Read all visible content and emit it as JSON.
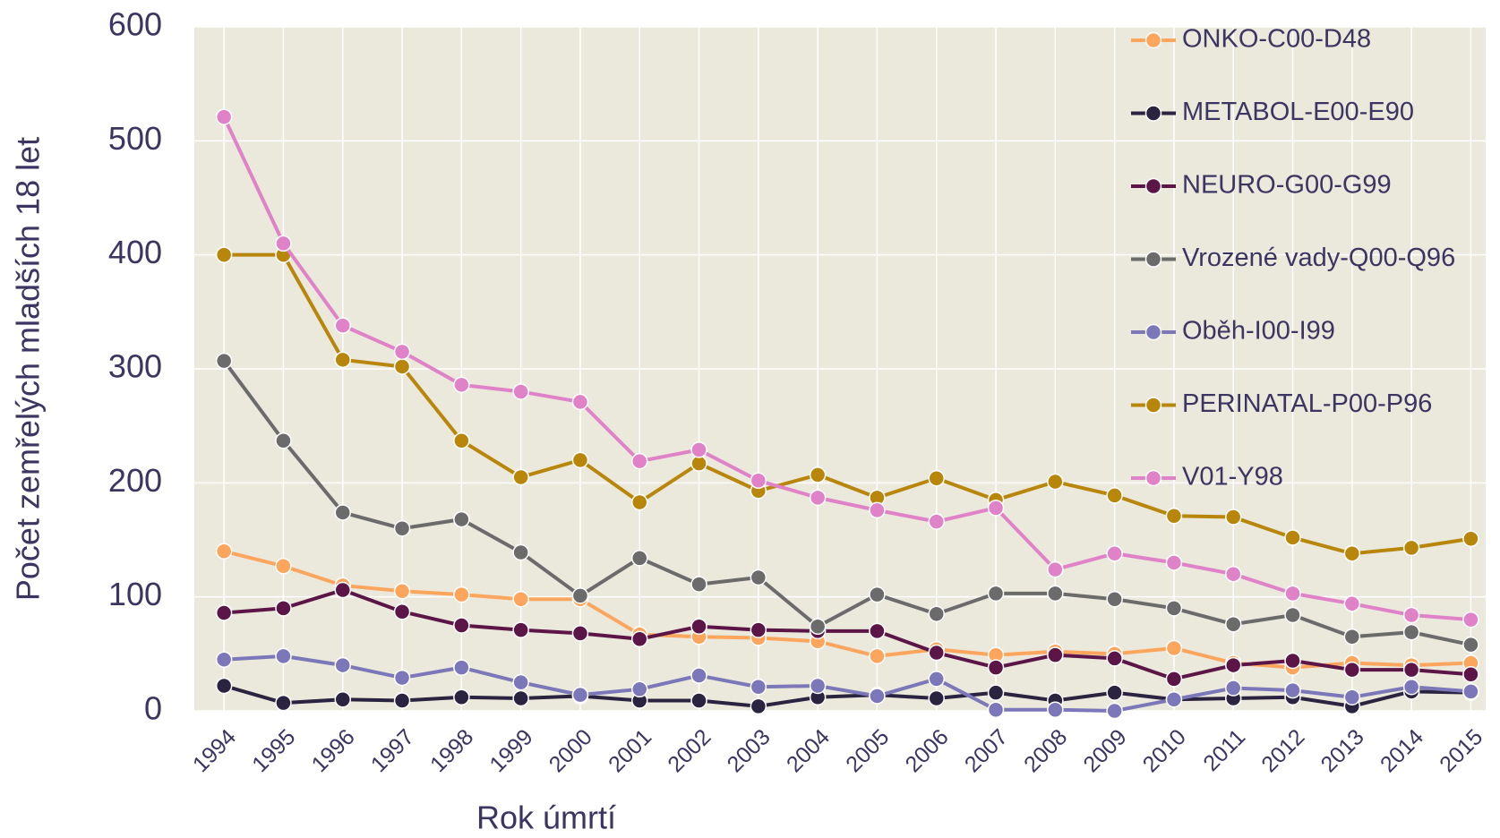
{
  "chart_data": {
    "type": "line",
    "xlabel": "Rok úmrtí",
    "ylabel": "Počet zemřelých mladších 18 let",
    "x": [
      1994,
      1995,
      1996,
      1997,
      1998,
      1999,
      2000,
      2001,
      2002,
      2003,
      2004,
      2005,
      2006,
      2007,
      2008,
      2009,
      2010,
      2011,
      2012,
      2013,
      2014,
      2015
    ],
    "series": [
      {
        "name": "ONKO-C00-D48",
        "color": "#fca55d",
        "values": [
          140,
          127,
          110,
          105,
          102,
          98,
          98,
          67,
          65,
          64,
          61,
          48,
          54,
          49,
          52,
          50,
          55,
          42,
          38,
          42,
          40,
          42
        ]
      },
      {
        "name": "METABOL-E00-E90",
        "color": "#2a2440",
        "values": [
          22,
          7,
          10,
          9,
          12,
          11,
          13,
          9,
          9,
          4,
          12,
          14,
          11,
          16,
          9,
          16,
          10,
          11,
          12,
          4,
          17,
          16
        ]
      },
      {
        "name": "NEURO-G00-G99",
        "color": "#5c1547",
        "values": [
          86,
          90,
          106,
          87,
          75,
          71,
          68,
          63,
          74,
          71,
          70,
          70,
          51,
          38,
          49,
          46,
          28,
          40,
          44,
          36,
          36,
          32
        ]
      },
      {
        "name": "Vrozené vady-Q00-Q96",
        "color": "#6b6b6b",
        "values": [
          307,
          237,
          174,
          160,
          168,
          139,
          101,
          134,
          111,
          117,
          74,
          102,
          85,
          103,
          103,
          98,
          90,
          76,
          84,
          65,
          69,
          58
        ]
      },
      {
        "name": "Oběh-I00-I99",
        "color": "#7b77b8",
        "values": [
          45,
          48,
          40,
          29,
          38,
          25,
          14,
          19,
          31,
          21,
          22,
          13,
          28,
          1,
          1,
          0,
          10,
          20,
          18,
          12,
          21,
          17
        ]
      },
      {
        "name": "PERINATAL-P00-P96",
        "color": "#b8860b",
        "values": [
          400,
          400,
          308,
          302,
          237,
          205,
          220,
          183,
          217,
          193,
          207,
          187,
          204,
          185,
          201,
          189,
          171,
          170,
          152,
          138,
          143,
          151
        ]
      },
      {
        "name": "V01-Y98",
        "color": "#e082c8",
        "values": [
          521,
          410,
          338,
          315,
          286,
          280,
          271,
          219,
          229,
          202,
          187,
          176,
          166,
          178,
          124,
          138,
          130,
          120,
          103,
          94,
          84,
          80
        ]
      }
    ],
    "xlim": [
      1993.5,
      2015.25
    ],
    "xticks": [
      1994,
      1995,
      1996,
      1997,
      1998,
      1999,
      2000,
      2001,
      2002,
      2003,
      2004,
      2005,
      2006,
      2007,
      2008,
      2009,
      2010,
      2011,
      2012,
      2013,
      2014,
      2015
    ],
    "ylim": [
      0,
      600
    ],
    "yticks": [
      0,
      100,
      200,
      300,
      400,
      500,
      600
    ],
    "grid": true,
    "legend": "upper right"
  }
}
